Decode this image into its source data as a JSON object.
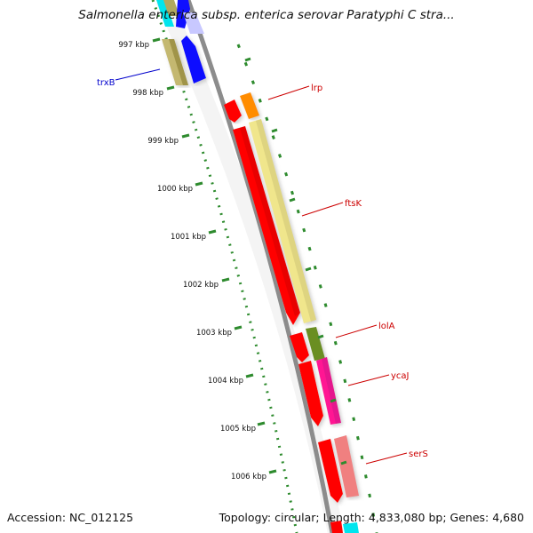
{
  "title": "Salmonella enterica subsp. enterica serovar Paratyphi C stra...",
  "footer": {
    "accession": "Accession: NC_012125",
    "stats": "Topology: circular; Length: 4,833,080 bp; Genes: 4,680"
  },
  "ticks": [
    "997 kbp",
    "998 kbp",
    "999 kbp",
    "1000 kbp",
    "1001 kbp",
    "1002 kbp",
    "1003 kbp",
    "1004 kbp",
    "1005 kbp",
    "1006 kbp"
  ],
  "genes": [
    {
      "name": "trxB",
      "color": "#0000cc"
    },
    {
      "name": "lrp",
      "color": "#cc0000"
    },
    {
      "name": "ftsK",
      "color": "#cc0000"
    },
    {
      "name": "lolA",
      "color": "#cc0000"
    },
    {
      "name": "ycaJ",
      "color": "#cc0000"
    },
    {
      "name": "serS",
      "color": "#cc0000"
    }
  ],
  "colors": {
    "backbone": "#8c8c8c",
    "ruler_major": "#2e8b2e",
    "ruler_minor": "#2e8b2e",
    "cds_red": "#ff0000",
    "cds_yellow": "#f0e68c",
    "cds_orange": "#ff8c00",
    "cds_olive": "#6b8e23",
    "cds_magenta": "#ff1493",
    "cds_pink": "#f08080",
    "cds_blue": "#0000ff",
    "cds_khaki": "#b0a860",
    "cds_cyan": "#00e5ee"
  }
}
